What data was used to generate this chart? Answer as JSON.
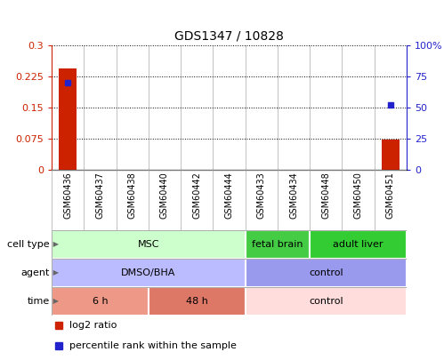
{
  "title": "GDS1347 / 10828",
  "samples": [
    "GSM60436",
    "GSM60437",
    "GSM60438",
    "GSM60440",
    "GSM60442",
    "GSM60444",
    "GSM60433",
    "GSM60434",
    "GSM60448",
    "GSM60450",
    "GSM60451"
  ],
  "log2_ratio": [
    0.245,
    0.0,
    0.0,
    0.0,
    0.0,
    0.0,
    0.0,
    0.0,
    0.0,
    0.0,
    0.072
  ],
  "percentile_rank": [
    70.0,
    0.0,
    0.0,
    0.0,
    0.0,
    0.0,
    0.0,
    0.0,
    0.0,
    0.0,
    52.0
  ],
  "ylim_left": [
    0.0,
    0.3
  ],
  "ylim_right": [
    0.0,
    100.0
  ],
  "yticks_left": [
    0,
    0.075,
    0.15,
    0.225,
    0.3
  ],
  "ytick_labels_left": [
    "0",
    "0.075",
    "0.15",
    "0.225",
    "0.3"
  ],
  "yticks_right": [
    0,
    25,
    50,
    75,
    100
  ],
  "ytick_labels_right": [
    "0",
    "25",
    "50",
    "75",
    "100%"
  ],
  "bar_color": "#cc2200",
  "dot_color": "#2222cc",
  "cell_type_groups": [
    {
      "label": "MSC",
      "start": 0,
      "end": 6,
      "color": "#ccffcc"
    },
    {
      "label": "fetal brain",
      "start": 6,
      "end": 8,
      "color": "#44cc44"
    },
    {
      "label": "adult liver",
      "start": 8,
      "end": 11,
      "color": "#33cc33"
    }
  ],
  "agent_groups": [
    {
      "label": "DMSO/BHA",
      "start": 0,
      "end": 6,
      "color": "#bbbbff"
    },
    {
      "label": "control",
      "start": 6,
      "end": 11,
      "color": "#9999ee"
    }
  ],
  "time_groups": [
    {
      "label": "6 h",
      "start": 0,
      "end": 3,
      "color": "#ee9988"
    },
    {
      "label": "48 h",
      "start": 3,
      "end": 6,
      "color": "#dd7766"
    },
    {
      "label": "control",
      "start": 6,
      "end": 11,
      "color": "#ffdddd"
    }
  ],
  "row_labels": [
    "cell type",
    "agent",
    "time"
  ],
  "legend_items": [
    {
      "color": "#cc2200",
      "label": "log2 ratio"
    },
    {
      "color": "#2222cc",
      "label": "percentile rank within the sample"
    }
  ],
  "tick_color_left": "#cc2200",
  "tick_color_right": "#2222cc"
}
